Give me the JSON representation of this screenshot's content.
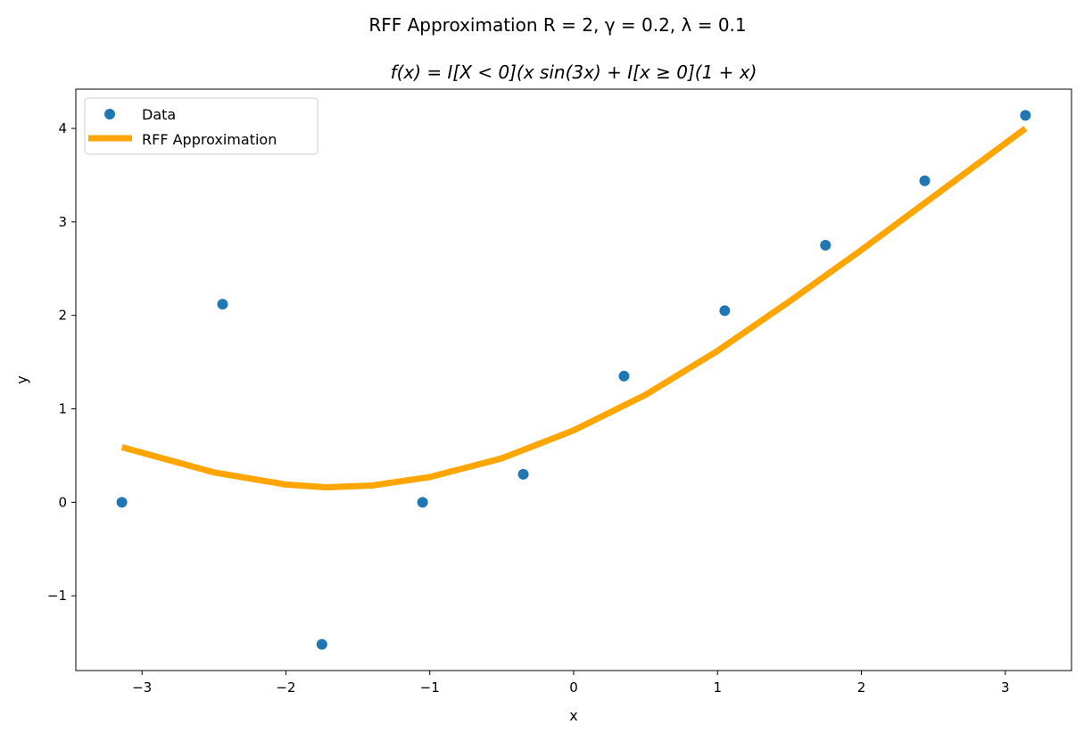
{
  "chart_data": {
    "type": "scatter+line",
    "title": "RFF Approximation R = 2, γ = 0.2, λ = 0.1",
    "subtitle": "f(x) = I[X < 0](x sin(3x) + I[x ≥ 0](1 + x)",
    "xlabel": "x",
    "ylabel": "y",
    "xlim": [
      -3.46,
      3.46
    ],
    "ylim": [
      -1.8,
      4.42
    ],
    "xticks": [
      -3,
      -2,
      -1,
      0,
      1,
      2,
      3
    ],
    "yticks": [
      -1,
      0,
      1,
      2,
      3,
      4
    ],
    "grid": false,
    "legend": "top-left",
    "series": [
      {
        "name": "Data",
        "kind": "scatter",
        "color": "#1f77b4",
        "x": [
          -3.14,
          -2.44,
          -1.75,
          -1.05,
          -0.35,
          0.35,
          1.05,
          1.75,
          2.44,
          3.14
        ],
        "y": [
          0.0,
          2.12,
          -1.52,
          0.0,
          0.3,
          1.35,
          2.05,
          2.75,
          3.44,
          4.14
        ]
      },
      {
        "name": "RFF Approximation",
        "kind": "line",
        "color": "#ffa500",
        "x": [
          -3.14,
          -2.5,
          -2.0,
          -1.72,
          -1.4,
          -1.0,
          -0.5,
          0.0,
          0.5,
          1.0,
          1.5,
          2.0,
          2.5,
          3.14
        ],
        "y": [
          0.59,
          0.32,
          0.19,
          0.16,
          0.18,
          0.27,
          0.47,
          0.77,
          1.15,
          1.62,
          2.15,
          2.7,
          3.27,
          4.0
        ]
      }
    ]
  }
}
